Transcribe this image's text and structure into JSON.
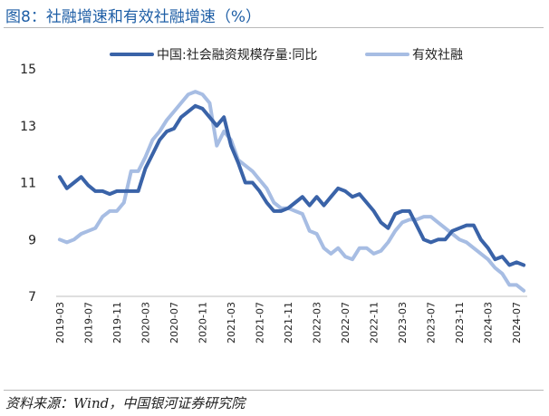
{
  "title": "图8：社融增速和有效社融增速（%）",
  "source": "资料来源：Wind，中国银河证券研究院",
  "chart_data": {
    "type": "line",
    "ylim": [
      7,
      15
    ],
    "yticks": [
      7,
      9,
      11,
      13,
      15
    ],
    "legend_position": "top",
    "x": [
      "2019-03",
      "2019-04",
      "2019-05",
      "2019-06",
      "2019-07",
      "2019-08",
      "2019-09",
      "2019-10",
      "2019-11",
      "2019-12",
      "2020-01",
      "2020-02",
      "2020-03",
      "2020-04",
      "2020-05",
      "2020-06",
      "2020-07",
      "2020-08",
      "2020-09",
      "2020-10",
      "2020-11",
      "2020-12",
      "2021-01",
      "2021-02",
      "2021-03",
      "2021-04",
      "2021-05",
      "2021-06",
      "2021-07",
      "2021-08",
      "2021-09",
      "2021-10",
      "2021-11",
      "2021-12",
      "2022-01",
      "2022-02",
      "2022-03",
      "2022-04",
      "2022-05",
      "2022-06",
      "2022-07",
      "2022-08",
      "2022-09",
      "2022-10",
      "2022-11",
      "2022-12",
      "2023-01",
      "2023-02",
      "2023-03",
      "2023-04",
      "2023-05",
      "2023-06",
      "2023-07",
      "2023-08",
      "2023-09",
      "2023-10",
      "2023-11",
      "2023-12",
      "2024-01",
      "2024-02",
      "2024-03",
      "2024-04",
      "2024-05",
      "2024-06",
      "2024-07",
      "2024-08"
    ],
    "xtick_labels": [
      "2019-03",
      "2019-07",
      "2019-11",
      "2020-03",
      "2020-07",
      "2020-11",
      "2021-03",
      "2021-07",
      "2021-11",
      "2022-03",
      "2022-07",
      "2022-11",
      "2023-03",
      "2023-07",
      "2023-11",
      "2024-03",
      "2024-07"
    ],
    "series": [
      {
        "name": "中国:社会融资规模存量:同比",
        "color": "#3a63a8",
        "values": [
          11.2,
          10.8,
          11.0,
          11.2,
          10.9,
          10.7,
          10.7,
          10.6,
          10.7,
          10.7,
          10.7,
          10.7,
          11.5,
          12.0,
          12.5,
          12.8,
          12.9,
          13.3,
          13.5,
          13.7,
          13.6,
          13.3,
          13.0,
          13.3,
          12.3,
          11.7,
          11.0,
          11.0,
          10.7,
          10.3,
          10.0,
          10.0,
          10.1,
          10.3,
          10.5,
          10.2,
          10.5,
          10.2,
          10.5,
          10.8,
          10.7,
          10.5,
          10.6,
          10.3,
          10.0,
          9.6,
          9.4,
          9.9,
          10.0,
          10.0,
          9.5,
          9.0,
          8.9,
          9.0,
          9.0,
          9.3,
          9.4,
          9.5,
          9.5,
          9.0,
          8.7,
          8.3,
          8.4,
          8.1,
          8.2,
          8.1
        ]
      },
      {
        "name": "有效社融",
        "color": "#a7bde3",
        "values": [
          9.0,
          8.9,
          9.0,
          9.2,
          9.3,
          9.4,
          9.8,
          10.0,
          10.0,
          10.3,
          11.4,
          11.4,
          11.9,
          12.5,
          12.8,
          13.2,
          13.5,
          13.8,
          14.1,
          14.2,
          14.1,
          13.8,
          12.3,
          12.8,
          12.5,
          11.8,
          11.6,
          11.4,
          11.1,
          10.8,
          10.3,
          10.1,
          10.1,
          10.0,
          9.9,
          9.3,
          9.2,
          8.7,
          8.5,
          8.7,
          8.4,
          8.3,
          8.7,
          8.7,
          8.5,
          8.6,
          8.9,
          9.3,
          9.6,
          9.7,
          9.7,
          9.8,
          9.8,
          9.6,
          9.4,
          9.2,
          9.0,
          8.9,
          8.7,
          8.5,
          8.3,
          8.0,
          7.8,
          7.4,
          7.4,
          7.2
        ]
      }
    ]
  }
}
